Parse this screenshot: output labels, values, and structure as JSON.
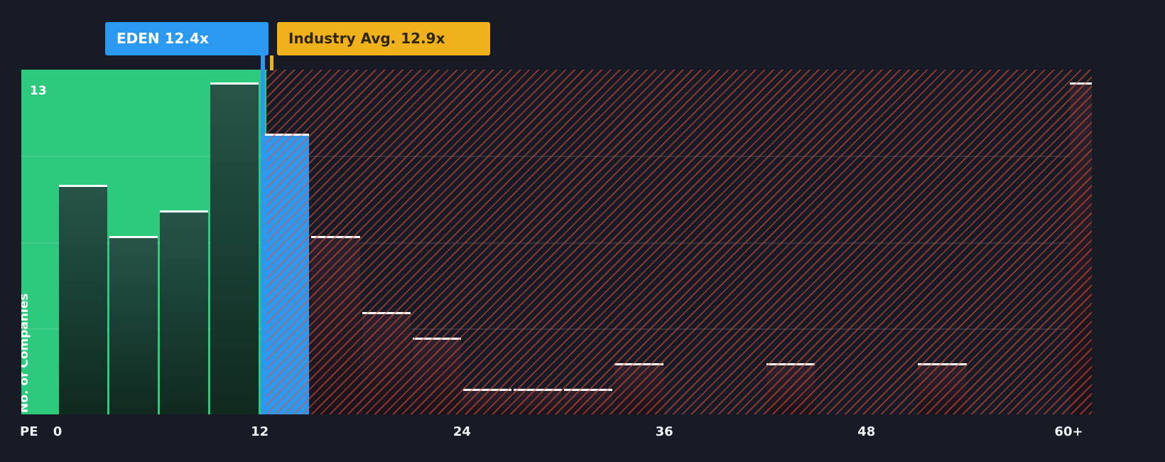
{
  "background_color": "#161b25",
  "callouts": {
    "company": {
      "label": "EDEN 12.4x",
      "color": "#2b99f0",
      "value": 12.4
    },
    "industry": {
      "label": "Industry Avg. 12.9x",
      "color": "#f0b21c",
      "value": 12.9
    }
  },
  "axis": {
    "y_label": "No. of Companies",
    "y_max_label": "13",
    "x_prefix": "PE",
    "x_ticks": [
      "0",
      "12",
      "24",
      "36",
      "48",
      "60+"
    ]
  },
  "chart_data": {
    "type": "bar",
    "title": "PE ratio histogram: EDEN vs industry average",
    "xlabel": "PE",
    "ylabel": "No. of Companies",
    "ylim": [
      0,
      13.5
    ],
    "x_range": [
      0,
      63
    ],
    "bin_width": 3,
    "x_tick_values": [
      0,
      12,
      24,
      36,
      48,
      60
    ],
    "categories": [
      "0-3",
      "3-6",
      "6-9",
      "9-12",
      "12-15",
      "15-18",
      "18-21",
      "21-24",
      "24-27",
      "27-30",
      "30-33",
      "33-36",
      "36-39",
      "39-42",
      "42-45",
      "45-48",
      "48-51",
      "51-54",
      "54-57",
      "57-60",
      "60+"
    ],
    "values": [
      9,
      7,
      8,
      13,
      11,
      7,
      4,
      3,
      1,
      1,
      1,
      2,
      0,
      0,
      2,
      0,
      0,
      2,
      0,
      0,
      13
    ],
    "company": {
      "name": "EDEN",
      "pe": 12.4,
      "bin_index": 4,
      "bar_color": "#2b99f0"
    },
    "industry_avg_pe": 12.9,
    "zones": {
      "below_average_color": "#2dc97d",
      "above_average_pattern": "red diagonal hatch",
      "above_average_stripe_color": "#e54e3c",
      "boundary_pe": 12.4
    },
    "grid": "3 faint horizontal lines at quarter heights",
    "legend_position": "none"
  }
}
